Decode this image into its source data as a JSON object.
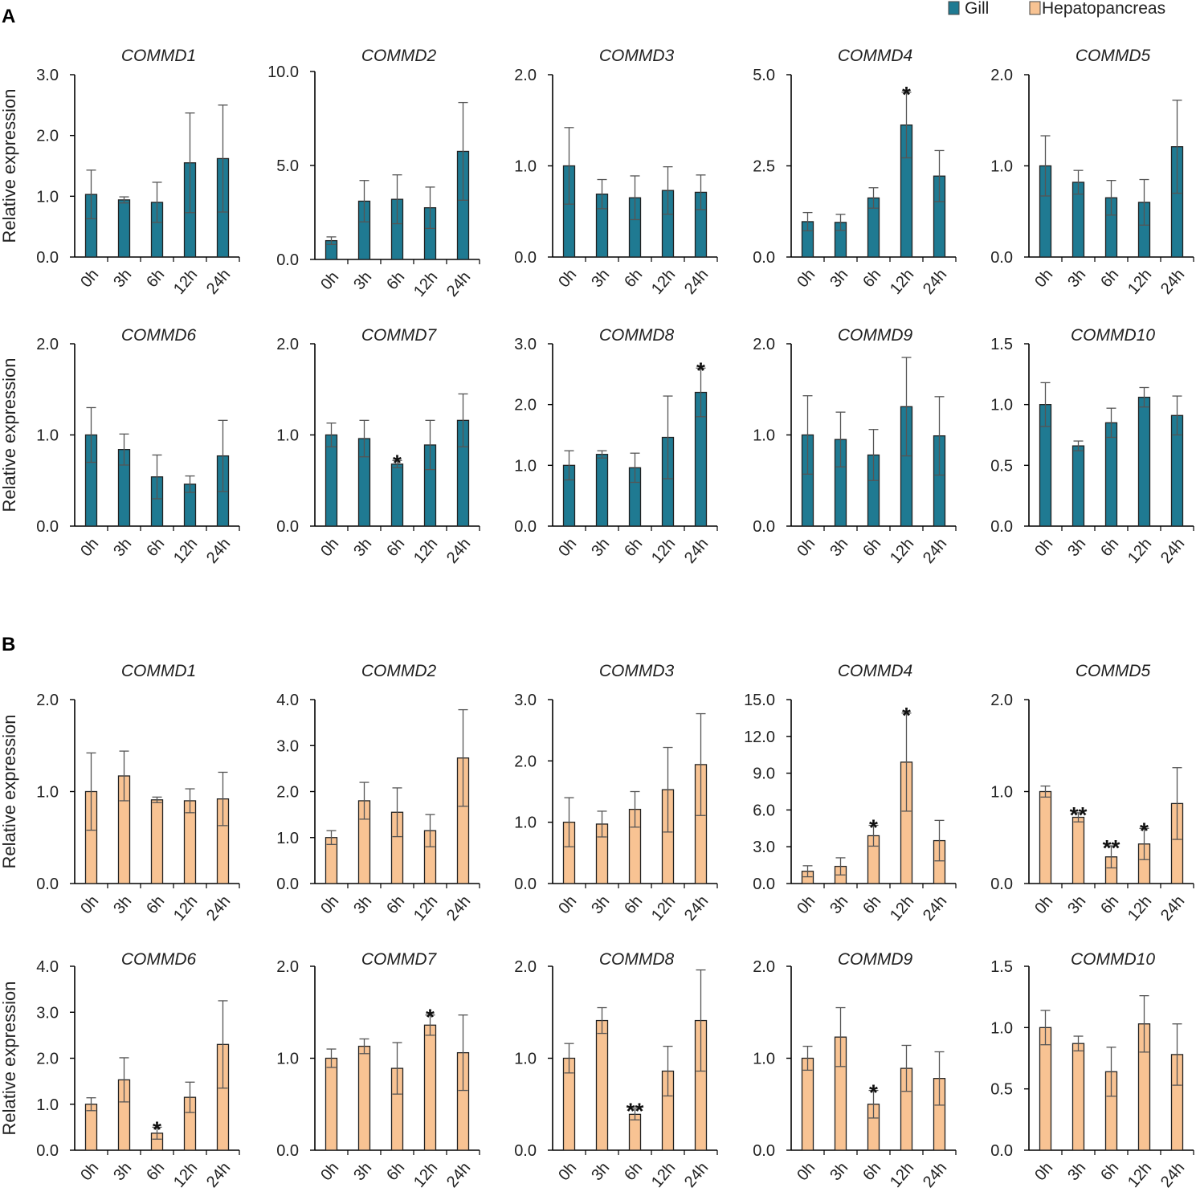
{
  "figure": {
    "panel_labels": [
      "A",
      "B"
    ],
    "legend": [
      {
        "label": "Gill",
        "color": "#1f7a92"
      },
      {
        "label": "Hepatopancreas",
        "color": "#f8c393"
      }
    ],
    "ylabel": "Relative expression",
    "categories": [
      "0h",
      "3h",
      "6h",
      "12h",
      "24h"
    ]
  },
  "chart_data": [
    {
      "type": "bar",
      "panel": "A",
      "tissue": "Gill",
      "color": "#1f7a92",
      "title": "COMMD1",
      "ylim": [
        0,
        3
      ],
      "yticks": [
        "0.0",
        "1.0",
        "2.0",
        "3.0"
      ],
      "categories": [
        "0h",
        "3h",
        "6h",
        "12h",
        "24h"
      ],
      "values": [
        1.03,
        0.94,
        0.9,
        1.55,
        1.62
      ],
      "errors": [
        0.4,
        0.05,
        0.33,
        0.82,
        0.88
      ],
      "significance": [
        "",
        "",
        "",
        "",
        ""
      ]
    },
    {
      "type": "bar",
      "panel": "A",
      "tissue": "Gill",
      "color": "#1f7a92",
      "title": "COMMD2",
      "ylim": [
        0,
        10
      ],
      "yticks": [
        "0.0",
        "5.0",
        "10.0"
      ],
      "categories": [
        "0h",
        "3h",
        "6h",
        "12h",
        "24h"
      ],
      "values": [
        1.0,
        3.1,
        3.2,
        2.75,
        5.75
      ],
      "errors": [
        0.2,
        1.1,
        1.3,
        1.1,
        2.6
      ],
      "significance": [
        "",
        "",
        "",
        "",
        ""
      ]
    },
    {
      "type": "bar",
      "panel": "A",
      "tissue": "Gill",
      "color": "#1f7a92",
      "title": "COMMD3",
      "ylim": [
        0,
        2
      ],
      "yticks": [
        "0.0",
        "1.0",
        "2.0"
      ],
      "categories": [
        "0h",
        "3h",
        "6h",
        "12h",
        "24h"
      ],
      "values": [
        1.0,
        0.69,
        0.65,
        0.73,
        0.71
      ],
      "errors": [
        0.42,
        0.16,
        0.24,
        0.26,
        0.19
      ],
      "significance": [
        "",
        "",
        "",
        "",
        ""
      ]
    },
    {
      "type": "bar",
      "panel": "A",
      "tissue": "Gill",
      "color": "#1f7a92",
      "title": "COMMD4",
      "ylim": [
        0,
        5
      ],
      "yticks": [
        "0.0",
        "2.5",
        "5.0"
      ],
      "categories": [
        "0h",
        "3h",
        "6h",
        "12h",
        "24h"
      ],
      "values": [
        0.97,
        0.95,
        1.62,
        3.62,
        2.22
      ],
      "errors": [
        0.25,
        0.22,
        0.28,
        0.9,
        0.7
      ],
      "significance": [
        "",
        "",
        "",
        "*",
        ""
      ]
    },
    {
      "type": "bar",
      "panel": "A",
      "tissue": "Gill",
      "color": "#1f7a92",
      "title": "COMMD5",
      "ylim": [
        0,
        2
      ],
      "yticks": [
        "0.0",
        "1.0",
        "2.0"
      ],
      "categories": [
        "0h",
        "3h",
        "6h",
        "12h",
        "24h"
      ],
      "values": [
        1.0,
        0.82,
        0.65,
        0.6,
        1.21
      ],
      "errors": [
        0.33,
        0.13,
        0.19,
        0.25,
        0.51
      ],
      "significance": [
        "",
        "",
        "",
        "",
        ""
      ]
    },
    {
      "type": "bar",
      "panel": "A",
      "tissue": "Gill",
      "color": "#1f7a92",
      "title": "COMMD6",
      "ylim": [
        0,
        2
      ],
      "yticks": [
        "0.0",
        "1.0",
        "2.0"
      ],
      "categories": [
        "0h",
        "3h",
        "6h",
        "12h",
        "24h"
      ],
      "values": [
        1.0,
        0.84,
        0.54,
        0.46,
        0.77
      ],
      "errors": [
        0.3,
        0.17,
        0.24,
        0.09,
        0.39
      ],
      "significance": [
        "",
        "",
        "",
        "",
        ""
      ]
    },
    {
      "type": "bar",
      "panel": "A",
      "tissue": "Gill",
      "color": "#1f7a92",
      "title": "COMMD7",
      "ylim": [
        0,
        2
      ],
      "yticks": [
        "0.0",
        "1.0",
        "2.0"
      ],
      "categories": [
        "0h",
        "3h",
        "6h",
        "12h",
        "24h"
      ],
      "values": [
        1.0,
        0.96,
        0.68,
        0.89,
        1.16
      ],
      "errors": [
        0.13,
        0.2,
        0.04,
        0.27,
        0.29
      ],
      "significance": [
        "",
        "",
        "*",
        "",
        ""
      ]
    },
    {
      "type": "bar",
      "panel": "A",
      "tissue": "Gill",
      "color": "#1f7a92",
      "title": "COMMD8",
      "ylim": [
        0,
        3
      ],
      "yticks": [
        "0.0",
        "1.0",
        "2.0",
        "3.0"
      ],
      "categories": [
        "0h",
        "3h",
        "6h",
        "12h",
        "24h"
      ],
      "values": [
        1.0,
        1.18,
        0.96,
        1.46,
        2.2
      ],
      "errors": [
        0.24,
        0.06,
        0.24,
        0.68,
        0.4
      ],
      "significance": [
        "",
        "",
        "",
        "",
        "*"
      ]
    },
    {
      "type": "bar",
      "panel": "A",
      "tissue": "Gill",
      "color": "#1f7a92",
      "title": "COMMD9",
      "ylim": [
        0,
        2
      ],
      "yticks": [
        "0.0",
        "1.0",
        "2.0"
      ],
      "categories": [
        "0h",
        "3h",
        "6h",
        "12h",
        "24h"
      ],
      "values": [
        1.0,
        0.95,
        0.78,
        1.31,
        0.99
      ],
      "errors": [
        0.43,
        0.3,
        0.28,
        0.54,
        0.43
      ],
      "significance": [
        "",
        "",
        "",
        "",
        ""
      ]
    },
    {
      "type": "bar",
      "panel": "A",
      "tissue": "Gill",
      "color": "#1f7a92",
      "title": "COMMD10",
      "ylim": [
        0,
        1.5
      ],
      "yticks": [
        "0.0",
        "0.5",
        "1.0",
        "1.5"
      ],
      "categories": [
        "0h",
        "3h",
        "6h",
        "12h",
        "24h"
      ],
      "values": [
        1.0,
        0.66,
        0.85,
        1.06,
        0.91
      ],
      "errors": [
        0.18,
        0.04,
        0.12,
        0.08,
        0.16
      ],
      "significance": [
        "",
        "",
        "",
        "",
        ""
      ]
    },
    {
      "type": "bar",
      "panel": "B",
      "tissue": "Hepatopancreas",
      "color": "#f8c393",
      "title": "COMMD1",
      "ylim": [
        0,
        2
      ],
      "yticks": [
        "0.0",
        "1.0",
        "2.0"
      ],
      "categories": [
        "0h",
        "3h",
        "6h",
        "12h",
        "24h"
      ],
      "values": [
        1.0,
        1.17,
        0.91,
        0.9,
        0.92
      ],
      "errors": [
        0.42,
        0.27,
        0.03,
        0.13,
        0.29
      ],
      "significance": [
        "",
        "",
        "",
        "",
        ""
      ]
    },
    {
      "type": "bar",
      "panel": "B",
      "tissue": "Hepatopancreas",
      "color": "#f8c393",
      "title": "COMMD2",
      "ylim": [
        0,
        4
      ],
      "yticks": [
        "0.0",
        "1.0",
        "2.0",
        "3.0",
        "4.0"
      ],
      "categories": [
        "0h",
        "3h",
        "6h",
        "12h",
        "24h"
      ],
      "values": [
        1.0,
        1.8,
        1.55,
        1.15,
        2.73
      ],
      "errors": [
        0.15,
        0.4,
        0.53,
        0.35,
        1.05
      ],
      "significance": [
        "",
        "",
        "",
        "",
        ""
      ]
    },
    {
      "type": "bar",
      "panel": "B",
      "tissue": "Hepatopancreas",
      "color": "#f8c393",
      "title": "COMMD3",
      "ylim": [
        0,
        3
      ],
      "yticks": [
        "0.0",
        "1.0",
        "2.0",
        "3.0"
      ],
      "categories": [
        "0h",
        "3h",
        "6h",
        "12h",
        "24h"
      ],
      "values": [
        1.0,
        0.97,
        1.21,
        1.53,
        1.94
      ],
      "errors": [
        0.4,
        0.21,
        0.29,
        0.69,
        0.83
      ],
      "significance": [
        "",
        "",
        "",
        "",
        ""
      ]
    },
    {
      "type": "bar",
      "panel": "B",
      "tissue": "Hepatopancreas",
      "color": "#f8c393",
      "title": "COMMD4",
      "ylim": [
        0,
        15
      ],
      "yticks": [
        "0.0",
        "3.0",
        "6.0",
        "9.0",
        "12.0",
        "15.0"
      ],
      "categories": [
        "0h",
        "3h",
        "6h",
        "12h",
        "24h"
      ],
      "values": [
        1.0,
        1.4,
        3.9,
        9.9,
        3.5
      ],
      "errors": [
        0.45,
        0.7,
        0.85,
        4.0,
        1.65
      ],
      "significance": [
        "",
        "",
        "*",
        "*",
        ""
      ]
    },
    {
      "type": "bar",
      "panel": "B",
      "tissue": "Hepatopancreas",
      "color": "#f8c393",
      "title": "COMMD5",
      "ylim": [
        0,
        2
      ],
      "yticks": [
        "0.0",
        "1.0",
        "2.0"
      ],
      "categories": [
        "0h",
        "3h",
        "6h",
        "12h",
        "24h"
      ],
      "values": [
        1.0,
        0.72,
        0.29,
        0.43,
        0.87
      ],
      "errors": [
        0.06,
        0.05,
        0.12,
        0.17,
        0.39
      ],
      "significance": [
        "",
        "**",
        "**",
        "*",
        ""
      ]
    },
    {
      "type": "bar",
      "panel": "B",
      "tissue": "Hepatopancreas",
      "color": "#f8c393",
      "title": "COMMD6",
      "ylim": [
        0,
        4
      ],
      "yticks": [
        "0.0",
        "1.0",
        "2.0",
        "3.0",
        "4.0"
      ],
      "categories": [
        "0h",
        "3h",
        "6h",
        "12h",
        "24h"
      ],
      "values": [
        1.0,
        1.53,
        0.37,
        1.15,
        2.3
      ],
      "errors": [
        0.14,
        0.48,
        0.13,
        0.33,
        0.95
      ],
      "significance": [
        "",
        "",
        "*",
        "",
        ""
      ]
    },
    {
      "type": "bar",
      "panel": "B",
      "tissue": "Hepatopancreas",
      "color": "#f8c393",
      "title": "COMMD7",
      "ylim": [
        0,
        2
      ],
      "yticks": [
        "0.0",
        "1.0",
        "2.0"
      ],
      "categories": [
        "0h",
        "3h",
        "6h",
        "12h",
        "24h"
      ],
      "values": [
        1.0,
        1.13,
        0.89,
        1.36,
        1.06
      ],
      "errors": [
        0.1,
        0.08,
        0.28,
        0.11,
        0.41
      ],
      "significance": [
        "",
        "",
        "",
        "*",
        ""
      ]
    },
    {
      "type": "bar",
      "panel": "B",
      "tissue": "Hepatopancreas",
      "color": "#f8c393",
      "title": "COMMD8",
      "ylim": [
        0,
        2
      ],
      "yticks": [
        "0.0",
        "1.0",
        "2.0"
      ],
      "categories": [
        "0h",
        "3h",
        "6h",
        "12h",
        "24h"
      ],
      "values": [
        1.0,
        1.41,
        0.39,
        0.86,
        1.41
      ],
      "errors": [
        0.16,
        0.14,
        0.06,
        0.27,
        0.55
      ],
      "significance": [
        "",
        "",
        "**",
        "",
        ""
      ]
    },
    {
      "type": "bar",
      "panel": "B",
      "tissue": "Hepatopancreas",
      "color": "#f8c393",
      "title": "COMMD9",
      "ylim": [
        0,
        2
      ],
      "yticks": [
        "0.0",
        "1.0",
        "2.0"
      ],
      "categories": [
        "0h",
        "3h",
        "6h",
        "12h",
        "24h"
      ],
      "values": [
        1.0,
        1.23,
        0.5,
        0.89,
        0.78
      ],
      "errors": [
        0.13,
        0.32,
        0.15,
        0.25,
        0.29
      ],
      "significance": [
        "",
        "",
        "*",
        "",
        ""
      ]
    },
    {
      "type": "bar",
      "panel": "B",
      "tissue": "Hepatopancreas",
      "color": "#f8c393",
      "title": "COMMD10",
      "ylim": [
        0,
        1.5
      ],
      "yticks": [
        "0.0",
        "0.5",
        "1.0",
        "1.5"
      ],
      "categories": [
        "0h",
        "3h",
        "6h",
        "12h",
        "24h"
      ],
      "values": [
        1.0,
        0.87,
        0.64,
        1.03,
        0.78
      ],
      "errors": [
        0.14,
        0.06,
        0.2,
        0.23,
        0.25
      ],
      "significance": [
        "",
        "",
        "",
        "",
        ""
      ]
    }
  ]
}
